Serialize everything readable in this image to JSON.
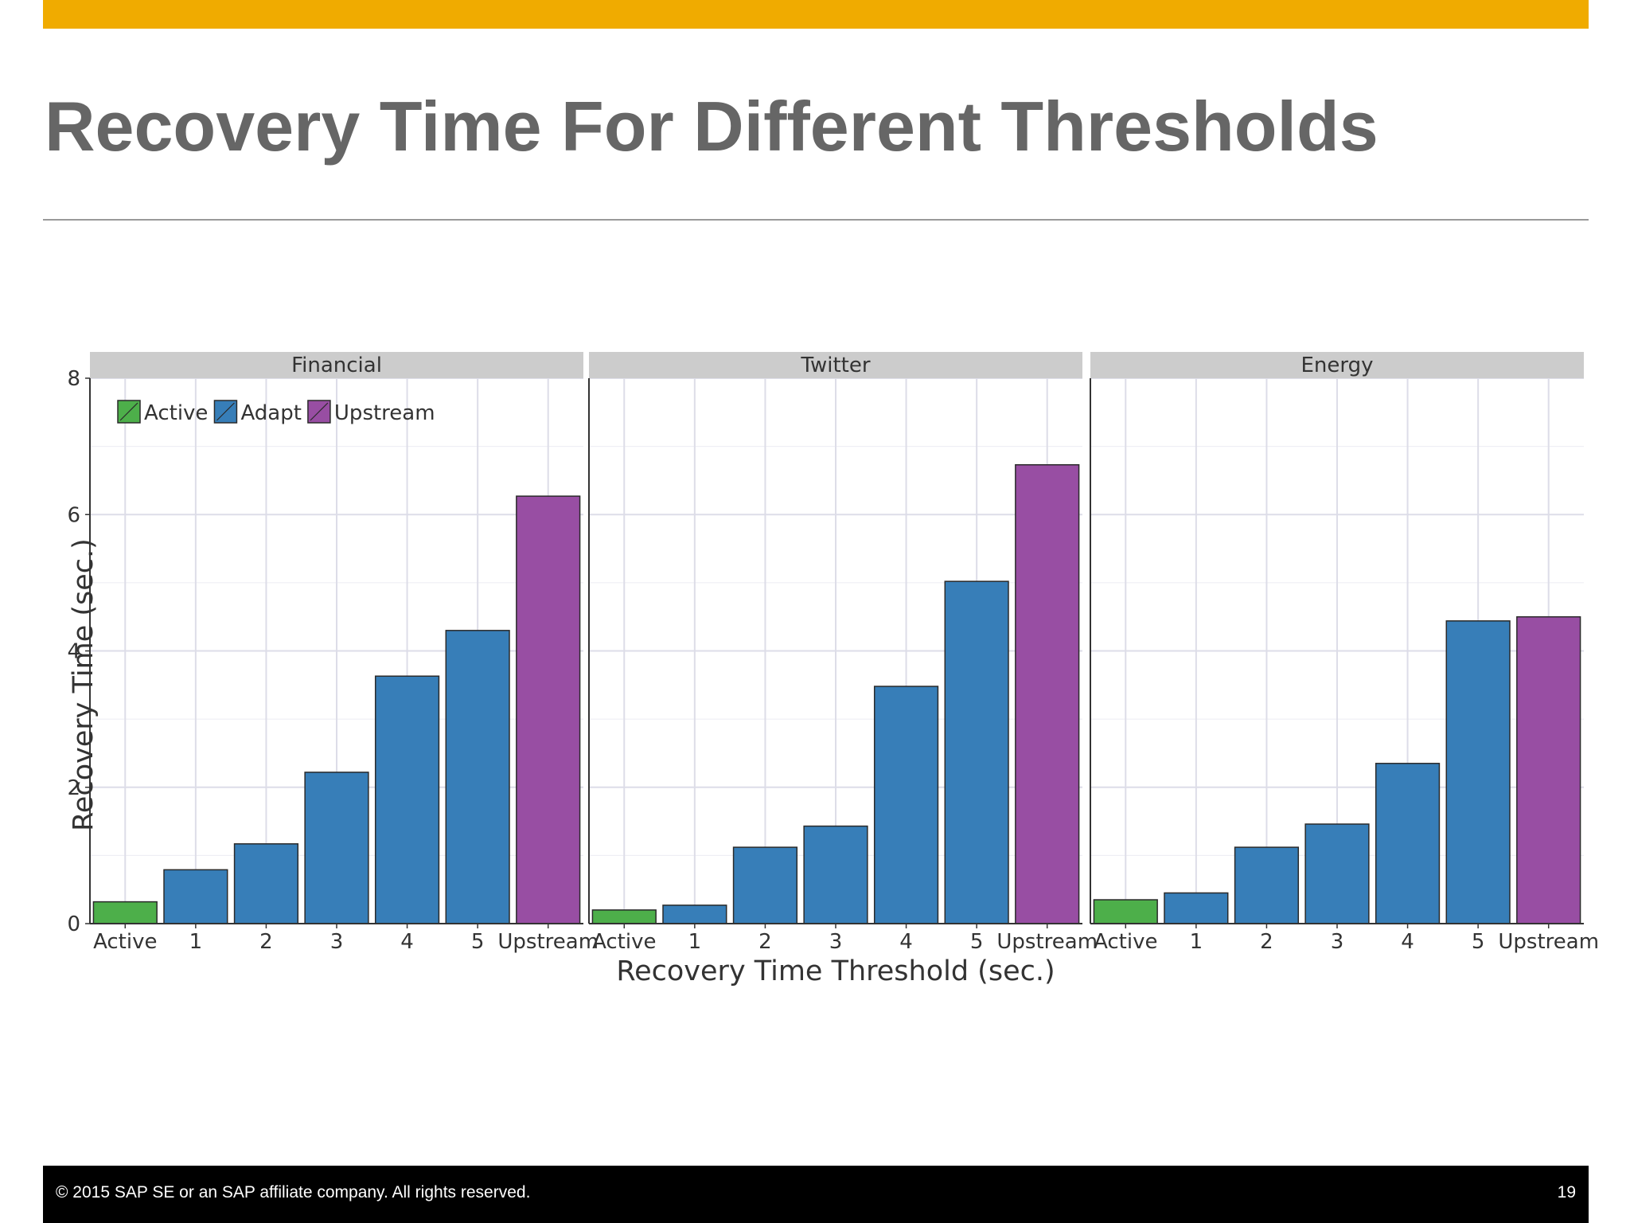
{
  "slide": {
    "title": "Recovery Time For Different Thresholds",
    "footer_copyright": "© 2015 SAP SE or an SAP affiliate company. All rights reserved.",
    "page_number": "19",
    "accent_color": "#f0ab00"
  },
  "chart_data": {
    "type": "bar",
    "xlabel": "Recovery Time Threshold (sec.)",
    "ylabel": "Recovery Time (sec.)",
    "ylim": [
      0,
      8
    ],
    "yticks": [
      0,
      2,
      4,
      6,
      8
    ],
    "grid": true,
    "legend_position": "top-left",
    "categories": [
      "Active",
      "1",
      "2",
      "3",
      "4",
      "5",
      "Upstream"
    ],
    "legend": [
      {
        "name": "Active",
        "color": "#4daf4a"
      },
      {
        "name": "Adapt",
        "color": "#377eb8"
      },
      {
        "name": "Upstream",
        "color": "#984ea3"
      }
    ],
    "bar_groups": [
      "Active",
      "Adapt",
      "Adapt",
      "Adapt",
      "Adapt",
      "Adapt",
      "Upstream"
    ],
    "panels": [
      {
        "name": "Financial",
        "values": [
          0.32,
          0.79,
          1.17,
          2.22,
          3.63,
          4.3,
          6.27
        ]
      },
      {
        "name": "Twitter",
        "values": [
          0.2,
          0.27,
          1.12,
          1.43,
          3.48,
          5.02,
          6.73
        ]
      },
      {
        "name": "Energy",
        "values": [
          0.35,
          0.45,
          1.12,
          1.46,
          2.35,
          4.44,
          4.5
        ]
      }
    ]
  }
}
